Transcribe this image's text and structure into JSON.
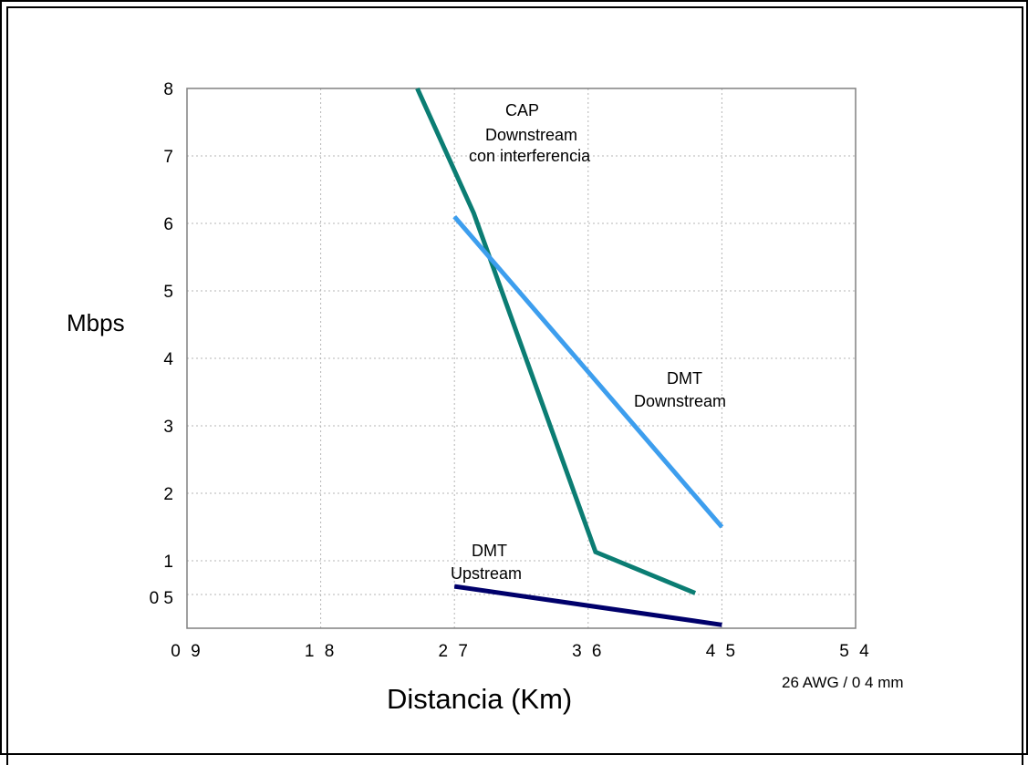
{
  "chart_data": {
    "type": "line",
    "xlabel": "Distancia (Km)",
    "ylabel": "Mbps",
    "x_ticks": [
      "0 9",
      "1 8",
      "2 7",
      "3 6",
      "4 5",
      "5 4"
    ],
    "x_tick_values": [
      0.9,
      1.8,
      2.7,
      3.6,
      4.5,
      5.4
    ],
    "y_ticks": [
      "0 5",
      "1",
      "2",
      "3",
      "4",
      "5",
      "6",
      "7",
      "8"
    ],
    "y_tick_values": [
      0.5,
      1,
      2,
      3,
      4,
      5,
      6,
      7,
      8
    ],
    "xlim": [
      0.9,
      5.4
    ],
    "ylim": [
      0,
      8
    ],
    "grid": true,
    "note": "26 AWG / 0 4 mm",
    "series": [
      {
        "key": "cap",
        "label_lines": [
          "CAP",
          "Downstream",
          "con interferencia"
        ],
        "color": "#0b7d73",
        "x": [
          2.45,
          2.83,
          3.65,
          4.32
        ],
        "y": [
          8.0,
          6.15,
          1.13,
          0.52
        ]
      },
      {
        "key": "dmt_down",
        "label_lines": [
          "DMT",
          "Downstream"
        ],
        "color": "#3d9eee",
        "x": [
          2.7,
          4.5
        ],
        "y": [
          6.1,
          1.5
        ]
      },
      {
        "key": "dmt_up",
        "label_lines": [
          "DMT",
          "Upstream"
        ],
        "color": "#00006b",
        "x": [
          2.7,
          4.5
        ],
        "y": [
          0.62,
          0.05
        ]
      }
    ]
  }
}
